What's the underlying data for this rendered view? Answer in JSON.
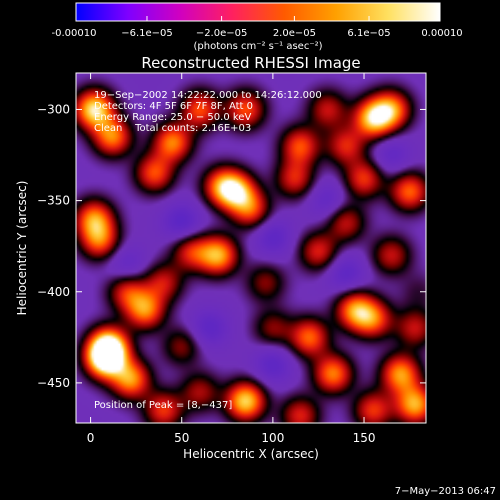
{
  "chart_data": {
    "type": "heatmap",
    "title": "Reconstructed RHESSI Image",
    "xlabel": "Heliocentric X (arcsec)",
    "ylabel": "Heliocentric Y (arcsec)",
    "xlim": [
      -8,
      184
    ],
    "ylim": [
      -472,
      -280
    ],
    "x_ticks": [
      0,
      50,
      100,
      150
    ],
    "y_ticks": [
      -300,
      -350,
      -400,
      -450
    ],
    "grid": false,
    "colorbar": {
      "position": "top",
      "unit_label": "(photons cm⁻² s⁻¹ asec⁻²)",
      "range": [
        -0.0001,
        0.0001
      ],
      "tick_labels": [
        "-0.00010",
        "−6.1e−05",
        "−2.0e−05",
        "2.0e−05",
        "6.1e−05",
        "0.00010"
      ],
      "tick_values": [
        -0.0001,
        -6.1e-05,
        -2e-05,
        2e-05,
        6.1e-05,
        0.0001
      ],
      "colors": [
        "#0000ff",
        "#7f00ff",
        "#d000c0",
        "#ff2060",
        "#ff5a00",
        "#ffa000",
        "#ffe060",
        "#ffffff"
      ]
    },
    "annotations": {
      "time": "19−Sep−2002 14:22:22.000 to 14:26:12.000",
      "detectors": "Detectors: 4F 5F 6F 7F 8F, Att 0",
      "energy": "Energy Range: 25.0 − 50.0 keV",
      "clean": "Clean    Total counts: 2.16E+03",
      "peak": "Position of Peak = [8,−437]"
    },
    "sources": [
      {
        "x": 8,
        "y": -437,
        "v": 1.0
      },
      {
        "x": 10,
        "y": -430,
        "v": 0.95
      },
      {
        "x": 22,
        "y": -448,
        "v": 0.75
      },
      {
        "x": 2,
        "y": -300,
        "v": 0.95
      },
      {
        "x": 12,
        "y": -315,
        "v": 0.7
      },
      {
        "x": 45,
        "y": -318,
        "v": 0.7
      },
      {
        "x": 35,
        "y": -335,
        "v": 0.6
      },
      {
        "x": 60,
        "y": -300,
        "v": 0.6
      },
      {
        "x": 85,
        "y": -300,
        "v": 0.6
      },
      {
        "x": 155,
        "y": -305,
        "v": 0.85
      },
      {
        "x": 165,
        "y": -300,
        "v": 0.7
      },
      {
        "x": 115,
        "y": -320,
        "v": 0.6
      },
      {
        "x": 140,
        "y": -320,
        "v": 0.5
      },
      {
        "x": 112,
        "y": -338,
        "v": 0.5
      },
      {
        "x": 2,
        "y": -360,
        "v": 0.7
      },
      {
        "x": 5,
        "y": -372,
        "v": 0.6
      },
      {
        "x": 80,
        "y": -345,
        "v": 0.75
      },
      {
        "x": 72,
        "y": -342,
        "v": 0.6
      },
      {
        "x": 88,
        "y": -355,
        "v": 0.55
      },
      {
        "x": 150,
        "y": -338,
        "v": 0.55
      },
      {
        "x": 175,
        "y": -345,
        "v": 0.65
      },
      {
        "x": 70,
        "y": -380,
        "v": 0.8
      },
      {
        "x": 55,
        "y": -378,
        "v": 0.5
      },
      {
        "x": 125,
        "y": -378,
        "v": 0.5
      },
      {
        "x": 140,
        "y": -362,
        "v": 0.45
      },
      {
        "x": 40,
        "y": -395,
        "v": 0.45
      },
      {
        "x": 30,
        "y": -410,
        "v": 0.7
      },
      {
        "x": 20,
        "y": -400,
        "v": 0.5
      },
      {
        "x": 145,
        "y": -410,
        "v": 0.7
      },
      {
        "x": 155,
        "y": -415,
        "v": 0.6
      },
      {
        "x": 120,
        "y": -425,
        "v": 0.65
      },
      {
        "x": 100,
        "y": -420,
        "v": 0.35
      },
      {
        "x": 180,
        "y": -400,
        "v": 0.6
      },
      {
        "x": 178,
        "y": -420,
        "v": 0.45
      },
      {
        "x": 133,
        "y": -445,
        "v": 0.7
      },
      {
        "x": 170,
        "y": -445,
        "v": 0.75
      },
      {
        "x": 178,
        "y": -462,
        "v": 0.8
      },
      {
        "x": 155,
        "y": -465,
        "v": 0.55
      },
      {
        "x": 85,
        "y": -460,
        "v": 0.9
      },
      {
        "x": 40,
        "y": -465,
        "v": 0.55
      },
      {
        "x": 60,
        "y": -455,
        "v": 0.4
      },
      {
        "x": 115,
        "y": -468,
        "v": 0.5
      },
      {
        "x": 96,
        "y": -395,
        "v": 0.35
      },
      {
        "x": 50,
        "y": -430,
        "v": 0.35
      },
      {
        "x": 165,
        "y": -380,
        "v": 0.45
      },
      {
        "x": 130,
        "y": -300,
        "v": 0.45
      }
    ],
    "negatives": [
      {
        "x": 50,
        "y": -362,
        "v": -0.35
      },
      {
        "x": 100,
        "y": -370,
        "v": -0.3
      },
      {
        "x": 140,
        "y": -390,
        "v": -0.3
      },
      {
        "x": 65,
        "y": -420,
        "v": -0.3
      },
      {
        "x": 100,
        "y": -440,
        "v": -0.3
      },
      {
        "x": 130,
        "y": -350,
        "v": -0.25
      },
      {
        "x": 180,
        "y": -400,
        "v": -0.45
      },
      {
        "x": 20,
        "y": -385,
        "v": -0.25
      },
      {
        "x": 165,
        "y": -325,
        "v": -0.25
      }
    ]
  },
  "footer_timestamp": "7−May−2013 06:47"
}
